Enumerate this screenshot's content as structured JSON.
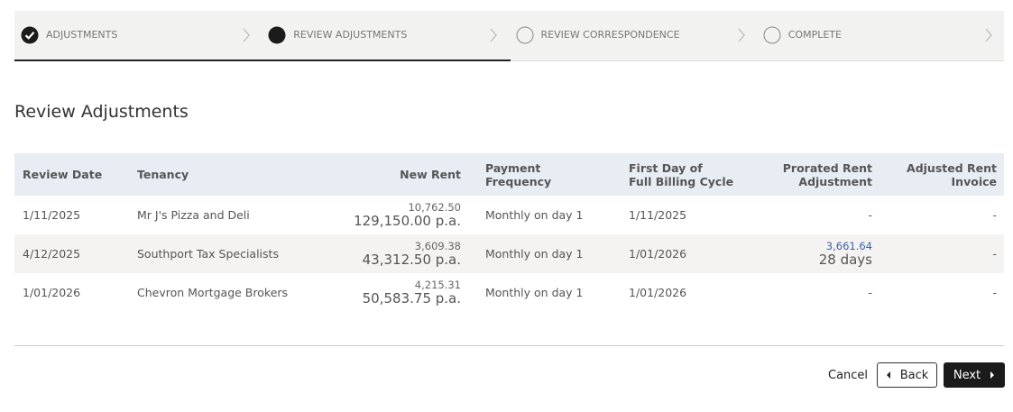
{
  "steps": [
    {
      "label": "ADJUSTMENTS",
      "state": "done"
    },
    {
      "label": "REVIEW ADJUSTMENTS",
      "state": "current"
    },
    {
      "label": "REVIEW CORRESPONDENCE",
      "state": "todo"
    },
    {
      "label": "COMPLETE",
      "state": "todo"
    }
  ],
  "title": "Review Adjustments",
  "table": {
    "columns": [
      [
        "Review Date"
      ],
      [
        "Tenancy"
      ],
      [
        "New Rent"
      ],
      [
        "Payment",
        "Frequency"
      ],
      [
        "First Day of",
        "Full Billing Cycle"
      ],
      [
        "Prorated Rent",
        "Adjustment"
      ],
      [
        "Adjusted Rent",
        "Invoice"
      ]
    ],
    "rows": [
      [
        [
          "1/11/2025"
        ],
        [
          "Mr J's Pizza and Deli"
        ],
        [
          "10,762.50",
          "129,150.00 p.a."
        ],
        [
          "Monthly on day 1"
        ],
        [
          "1/11/2025"
        ],
        [
          "-"
        ],
        [
          "-"
        ]
      ],
      [
        [
          "4/12/2025"
        ],
        [
          "Southport Tax Specialists"
        ],
        [
          "3,609.38",
          "43,312.50 p.a."
        ],
        [
          "Monthly on day 1"
        ],
        [
          "1/01/2026"
        ],
        {
          "lines": [
            "3,661.64",
            "28 days"
          ],
          "link": true
        },
        [
          "-"
        ]
      ],
      [
        [
          "1/01/2026"
        ],
        [
          "Chevron Mortgage Brokers"
        ],
        [
          "4,215.31",
          "50,583.75 p.a."
        ],
        [
          "Monthly on day 1"
        ],
        [
          "1/01/2026"
        ],
        [
          "-"
        ],
        [
          "-"
        ]
      ]
    ]
  },
  "buttons": {
    "cancel": "Cancel",
    "back": "Back",
    "next": "Next"
  }
}
